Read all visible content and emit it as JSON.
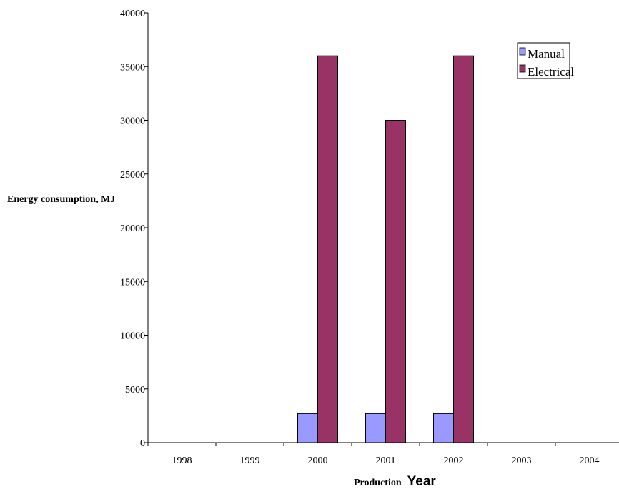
{
  "chart_data": {
    "type": "bar",
    "categories": [
      "1998",
      "1999",
      "2000",
      "2001",
      "2002",
      "2003",
      "2004"
    ],
    "series": [
      {
        "name": "Manual",
        "values": [
          0,
          0,
          2700,
          2700,
          2700,
          0,
          0
        ],
        "color": "#9999ff"
      },
      {
        "name": "Electrical",
        "values": [
          0,
          0,
          36000,
          30000,
          36000,
          0,
          0
        ],
        "color": "#993366"
      }
    ],
    "ylabel": "Energy consumption, MJ",
    "xlabel_prefix": "Production",
    "xlabel_main": "Year",
    "ylim": [
      0,
      40000
    ],
    "yticks": [
      "0",
      "5000",
      "10000",
      "15000",
      "20000",
      "25000",
      "30000",
      "35000",
      "40000"
    ],
    "grid": false,
    "legend_position": "top-right"
  }
}
